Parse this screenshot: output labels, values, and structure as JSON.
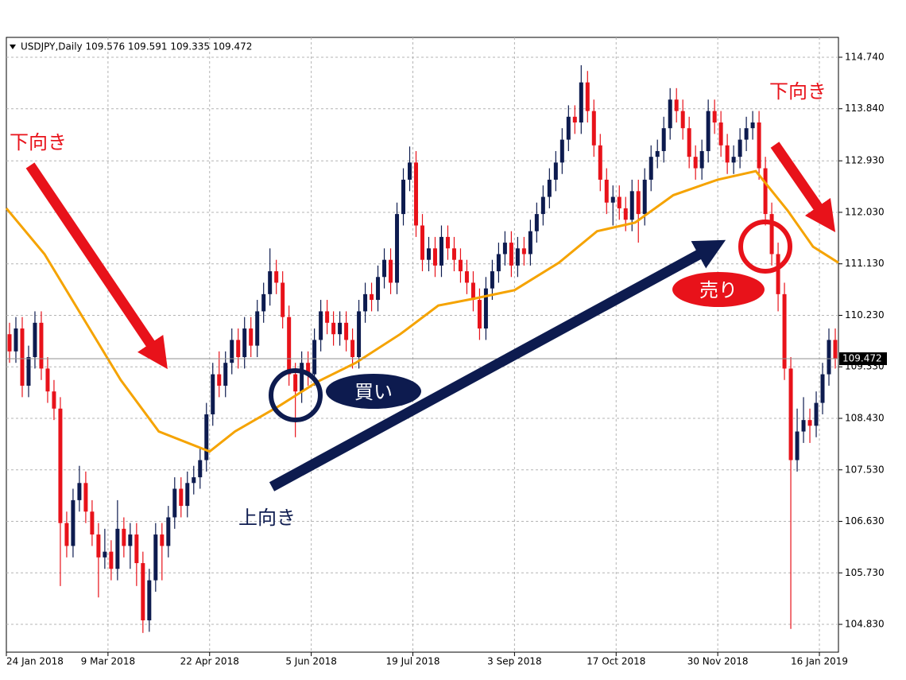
{
  "chart_data": {
    "type": "candlestick",
    "header": "USDJPY,Daily  109.576 109.591 109.335 109.472",
    "up_color": "#0d1b4f",
    "down_color": "#e8121a",
    "grid": true,
    "xlim": [
      0,
      131
    ],
    "xticks": [
      {
        "value": 0,
        "label": "24 Jan 2018"
      },
      {
        "value": 16,
        "label": "9 Mar 2018"
      },
      {
        "value": 32,
        "label": "22 Apr 2018"
      },
      {
        "value": 48,
        "label": "5 Jun 2018"
      },
      {
        "value": 64,
        "label": "19 Jul 2018"
      },
      {
        "value": 80,
        "label": "3 Sep 2018"
      },
      {
        "value": 96,
        "label": "17 Oct 2018"
      },
      {
        "value": 112,
        "label": "30 Nov 2018"
      },
      {
        "value": 128,
        "label": "16 Jan 2019"
      }
    ],
    "ylim": [
      104.344,
      115.087
    ],
    "yticks": [
      {
        "value": 114.74,
        "label": "114.740"
      },
      {
        "value": 113.84,
        "label": "113.840"
      },
      {
        "value": 112.93,
        "label": "112.930"
      },
      {
        "value": 112.03,
        "label": "112.030"
      },
      {
        "value": 111.13,
        "label": "111.130"
      },
      {
        "value": 110.23,
        "label": "110.230"
      },
      {
        "value": 109.33,
        "label": "109.330"
      },
      {
        "value": 108.43,
        "label": "108.430"
      },
      {
        "value": 107.53,
        "label": "107.530"
      },
      {
        "value": 106.63,
        "label": "106.630"
      },
      {
        "value": 105.73,
        "label": "105.730"
      },
      {
        "value": 104.83,
        "label": "104.830"
      }
    ],
    "current_price": 109.472,
    "open": [
      109.9,
      109.6,
      110.0,
      109.0,
      109.5,
      110.1,
      109.3,
      108.9,
      108.6,
      106.6,
      106.2,
      107.0,
      107.3,
      106.8,
      106.4,
      106.0,
      106.1,
      105.8,
      106.5,
      106.2,
      106.4,
      105.9,
      104.9,
      105.6,
      106.4,
      106.2,
      106.7,
      107.2,
      106.9,
      107.3,
      107.4,
      107.7,
      108.5,
      109.2,
      109.0,
      109.4,
      109.8,
      109.5,
      110.0,
      109.7,
      110.3,
      110.6,
      111.0,
      110.8,
      110.2,
      109.2,
      108.9,
      109.4,
      109.2,
      109.8,
      110.3,
      110.1,
      109.9,
      110.1,
      109.8,
      109.5,
      110.3,
      110.6,
      110.5,
      110.9,
      111.2,
      110.8,
      112.0,
      112.6,
      112.9,
      111.8,
      111.2,
      111.4,
      111.1,
      111.6,
      111.4,
      111.2,
      111.0,
      110.8,
      110.5,
      110.0,
      110.7,
      111.0,
      111.3,
      111.5,
      111.1,
      111.4,
      111.3,
      111.7,
      112.0,
      112.3,
      112.6,
      112.9,
      113.3,
      113.7,
      113.6,
      114.3,
      113.8,
      113.2,
      112.6,
      112.2,
      112.3,
      112.1,
      111.9,
      112.4,
      112.0,
      112.6,
      113.0,
      113.1,
      113.5,
      114.0,
      113.8,
      113.5,
      113.0,
      112.8,
      113.1,
      113.8,
      113.6,
      113.2,
      112.9,
      113.0,
      113.3,
      113.5,
      113.6,
      112.8,
      112.0,
      111.3,
      110.6,
      109.3,
      107.7,
      108.2,
      108.4,
      108.3,
      108.7,
      109.2,
      109.8
    ],
    "high": [
      110.1,
      110.2,
      110.2,
      109.7,
      110.3,
      110.3,
      109.5,
      109.1,
      108.8,
      106.8,
      107.2,
      107.6,
      107.5,
      107.0,
      106.6,
      106.5,
      106.3,
      107.0,
      106.7,
      106.6,
      106.6,
      106.1,
      105.8,
      106.6,
      106.6,
      106.9,
      107.4,
      107.4,
      107.5,
      107.6,
      107.9,
      108.7,
      109.4,
      109.6,
      109.6,
      110.0,
      110.0,
      110.2,
      110.2,
      110.5,
      110.8,
      111.4,
      111.2,
      111.0,
      110.4,
      109.4,
      109.6,
      109.6,
      110.0,
      110.5,
      110.5,
      110.3,
      110.3,
      110.3,
      110.0,
      110.5,
      110.8,
      110.8,
      111.1,
      111.4,
      111.4,
      112.2,
      112.8,
      113.18,
      113.1,
      112.0,
      111.6,
      111.6,
      111.8,
      111.8,
      111.6,
      111.4,
      111.2,
      111.0,
      110.7,
      110.9,
      111.2,
      111.5,
      111.7,
      111.7,
      111.6,
      111.6,
      111.9,
      112.2,
      112.5,
      112.8,
      113.1,
      113.5,
      113.9,
      113.9,
      114.6,
      114.5,
      114.0,
      113.4,
      112.8,
      112.5,
      112.5,
      112.3,
      112.6,
      112.6,
      112.8,
      113.2,
      113.3,
      113.7,
      114.2,
      114.2,
      114.0,
      113.7,
      113.2,
      113.3,
      114.0,
      114.0,
      113.8,
      113.4,
      113.2,
      113.5,
      113.7,
      113.8,
      113.8,
      113.0,
      112.2,
      111.5,
      110.8,
      109.5,
      108.6,
      108.8,
      108.6,
      108.9,
      109.4,
      110.0,
      110.0
    ],
    "low": [
      109.4,
      109.4,
      108.8,
      108.8,
      109.3,
      109.1,
      108.7,
      108.4,
      105.5,
      106.0,
      106.0,
      106.8,
      106.6,
      106.2,
      105.3,
      105.8,
      105.6,
      105.6,
      106.0,
      105.8,
      105.5,
      104.68,
      104.7,
      105.4,
      105.6,
      106.0,
      106.5,
      106.7,
      106.7,
      107.1,
      107.2,
      107.5,
      108.3,
      108.8,
      108.8,
      109.2,
      109.3,
      109.3,
      109.5,
      109.5,
      110.1,
      110.4,
      110.6,
      110.0,
      109.0,
      108.1,
      108.7,
      109.0,
      109.0,
      109.6,
      109.9,
      109.7,
      109.7,
      109.6,
      109.3,
      109.3,
      110.1,
      110.3,
      110.3,
      110.7,
      110.6,
      110.6,
      111.8,
      112.4,
      111.6,
      111.0,
      111.0,
      110.9,
      110.9,
      111.2,
      111.0,
      110.8,
      110.6,
      110.3,
      109.8,
      109.8,
      110.5,
      110.8,
      111.1,
      110.9,
      110.9,
      111.1,
      111.1,
      111.5,
      111.8,
      112.1,
      112.4,
      112.7,
      113.1,
      113.4,
      113.4,
      113.6,
      113.0,
      112.4,
      112.0,
      111.8,
      111.9,
      111.7,
      111.7,
      111.5,
      111.8,
      112.4,
      112.8,
      112.9,
      113.3,
      113.6,
      113.3,
      112.8,
      112.6,
      112.6,
      112.9,
      113.4,
      113.0,
      112.7,
      112.7,
      112.8,
      113.1,
      113.3,
      112.6,
      111.8,
      111.1,
      110.3,
      109.1,
      104.75,
      107.5,
      108.0,
      108.0,
      108.1,
      108.5,
      109.0,
      109.3
    ],
    "close": [
      109.6,
      110.0,
      109.0,
      109.5,
      110.1,
      109.3,
      108.9,
      108.6,
      106.6,
      106.2,
      107.0,
      107.3,
      106.8,
      106.4,
      106.0,
      106.1,
      105.8,
      106.5,
      106.2,
      106.4,
      105.9,
      104.9,
      105.6,
      106.4,
      106.2,
      106.7,
      107.2,
      106.9,
      107.3,
      107.4,
      107.7,
      108.5,
      109.2,
      109.0,
      109.4,
      109.8,
      109.5,
      110.0,
      109.7,
      110.3,
      110.6,
      111.0,
      110.8,
      110.2,
      109.2,
      108.9,
      109.4,
      109.2,
      109.8,
      110.3,
      110.1,
      109.9,
      110.1,
      109.8,
      109.5,
      110.3,
      110.6,
      110.5,
      110.9,
      111.2,
      110.8,
      112.0,
      112.6,
      112.9,
      111.8,
      111.2,
      111.4,
      111.1,
      111.6,
      111.4,
      111.2,
      111.0,
      110.8,
      110.5,
      110.0,
      110.7,
      111.0,
      111.3,
      111.5,
      111.1,
      111.4,
      111.3,
      111.7,
      112.0,
      112.3,
      112.6,
      112.9,
      113.3,
      113.7,
      113.6,
      114.3,
      113.8,
      113.2,
      112.6,
      112.2,
      112.3,
      112.1,
      111.9,
      112.4,
      112.0,
      112.6,
      113.0,
      113.1,
      113.5,
      114.0,
      113.8,
      113.5,
      113.0,
      112.8,
      113.1,
      113.8,
      113.6,
      113.2,
      112.9,
      113.0,
      113.3,
      113.5,
      113.6,
      112.8,
      112.0,
      111.3,
      110.6,
      109.3,
      107.7,
      108.2,
      108.4,
      108.3,
      108.7,
      109.2,
      109.8,
      109.47
    ],
    "ma": {
      "color": "#f5a300",
      "x": [
        0,
        6,
        12,
        18,
        24,
        32,
        36,
        43,
        49,
        55,
        62,
        68,
        74,
        80,
        87,
        93,
        99,
        105,
        112,
        118,
        123,
        127,
        131
      ],
      "values": [
        112.1,
        111.3,
        110.2,
        109.1,
        108.2,
        107.85,
        108.2,
        108.65,
        109.07,
        109.4,
        109.9,
        110.4,
        110.53,
        110.67,
        111.15,
        111.7,
        111.85,
        112.33,
        112.6,
        112.75,
        112.06,
        111.43,
        111.15
      ]
    },
    "annotations": [
      "下向き",
      "下向き",
      "上向き",
      "買い",
      "売り"
    ]
  }
}
